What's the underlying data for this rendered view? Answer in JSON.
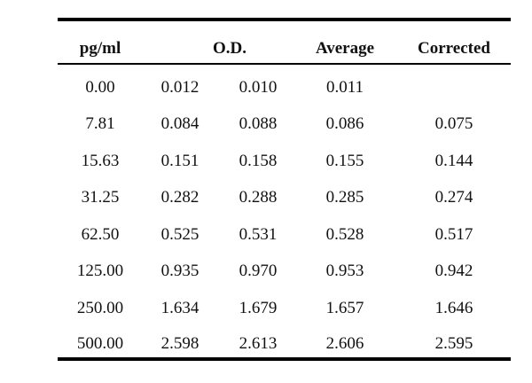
{
  "table": {
    "headers": {
      "concentration": "pg/ml",
      "od": "O.D.",
      "average": "Average",
      "corrected": "Corrected"
    },
    "rows": [
      {
        "conc": "0.00",
        "od1": "0.012",
        "od2": "0.010",
        "avg": "0.011",
        "corr": ""
      },
      {
        "conc": "7.81",
        "od1": "0.084",
        "od2": "0.088",
        "avg": "0.086",
        "corr": "0.075"
      },
      {
        "conc": "15.63",
        "od1": "0.151",
        "od2": "0.158",
        "avg": "0.155",
        "corr": "0.144"
      },
      {
        "conc": "31.25",
        "od1": "0.282",
        "od2": "0.288",
        "avg": "0.285",
        "corr": "0.274"
      },
      {
        "conc": "62.50",
        "od1": "0.525",
        "od2": "0.531",
        "avg": "0.528",
        "corr": "0.517"
      },
      {
        "conc": "125.00",
        "od1": "0.935",
        "od2": "0.970",
        "avg": "0.953",
        "corr": "0.942"
      },
      {
        "conc": "250.00",
        "od1": "1.634",
        "od2": "1.679",
        "avg": "1.657",
        "corr": "1.646"
      },
      {
        "conc": "500.00",
        "od1": "2.598",
        "od2": "2.613",
        "avg": "2.606",
        "corr": "2.595"
      }
    ]
  }
}
